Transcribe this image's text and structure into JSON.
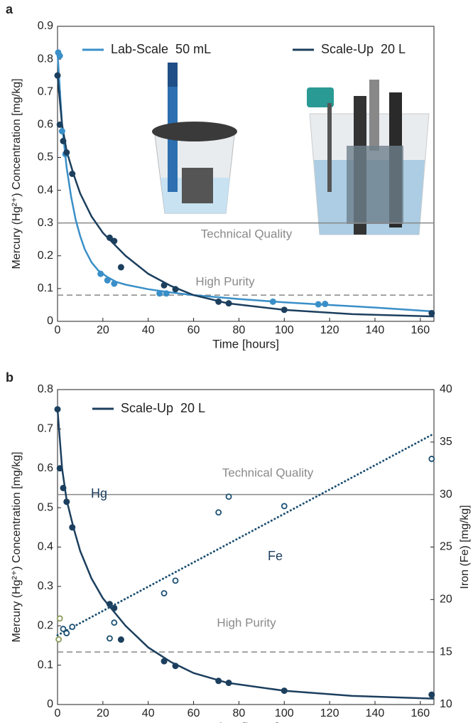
{
  "chart_data": [
    {
      "type": "scatter",
      "panel_label": "a",
      "xlabel": "Time [hours]",
      "ylabel": "Mercury (Hg²⁺) Concentration [mg/kg]",
      "xlim": [
        0,
        166
      ],
      "xticks": [
        0,
        20,
        40,
        60,
        80,
        100,
        120,
        140,
        160
      ],
      "ylim": [
        0,
        0.9
      ],
      "yticks": [
        0,
        0.1,
        0.2,
        0.3,
        0.4,
        0.5,
        0.6,
        0.7,
        0.8,
        0.9
      ],
      "ref_lines": [
        {
          "label": "Technical Quality",
          "value": 0.3,
          "style": "solid"
        },
        {
          "label": "High Purity",
          "value": 0.08,
          "style": "dashed"
        }
      ],
      "series": [
        {
          "name": "Lab-Scale  50 mL",
          "color": "#3a8fc8",
          "mode": "line",
          "x": [
            0,
            2,
            4,
            6,
            8,
            10,
            12,
            15,
            18,
            22,
            26,
            30,
            40,
            50,
            60,
            80,
            100,
            120,
            140,
            166
          ],
          "values": [
            0.82,
            0.6,
            0.47,
            0.38,
            0.31,
            0.26,
            0.22,
            0.18,
            0.155,
            0.135,
            0.12,
            0.112,
            0.098,
            0.088,
            0.08,
            0.068,
            0.058,
            0.05,
            0.042,
            0.03
          ]
        },
        {
          "name": "Scale-Up  20 L",
          "color": "#1c3f5e",
          "mode": "line",
          "x": [
            0,
            2,
            4,
            7,
            10,
            15,
            20,
            25,
            30,
            40,
            50,
            60,
            75,
            100,
            130,
            166
          ],
          "values": [
            0.75,
            0.6,
            0.52,
            0.45,
            0.39,
            0.32,
            0.27,
            0.235,
            0.2,
            0.145,
            0.108,
            0.08,
            0.055,
            0.035,
            0.022,
            0.015
          ]
        },
        {
          "color": "#3a8fc8",
          "mode": "dot",
          "x": [
            0.3,
            1,
            2,
            3.5,
            19,
            22,
            25,
            45,
            48,
            95,
            115,
            118
          ],
          "values": [
            0.82,
            0.81,
            0.58,
            0.51,
            0.145,
            0.125,
            0.115,
            0.085,
            0.085,
            0.06,
            0.052,
            0.053
          ]
        },
        {
          "color": "#1c3f5e",
          "mode": "dot",
          "x": [
            0,
            1,
            2.5,
            4,
            6.5,
            23,
            25,
            28,
            47,
            52,
            71,
            75.5,
            100,
            165
          ],
          "values": [
            0.75,
            0.6,
            0.55,
            0.515,
            0.45,
            0.255,
            0.245,
            0.165,
            0.11,
            0.098,
            0.06,
            0.055,
            0.035,
            0.025
          ]
        }
      ]
    },
    {
      "type": "scatter",
      "panel_label": "b",
      "xlabel": "Time [hours]",
      "ylabel": "Mercury (Hg²⁺) Concentration [mg/kg]",
      "y2label": "Iron (Fe) [mg/kg]",
      "xlim": [
        0,
        166
      ],
      "xticks": [
        0,
        20,
        40,
        60,
        80,
        100,
        120,
        140,
        160
      ],
      "ylim": [
        0,
        0.8
      ],
      "yticks": [
        0,
        0.1,
        0.2,
        0.3,
        0.4,
        0.5,
        0.6,
        0.7,
        0.8
      ],
      "y2lim": [
        10,
        40
      ],
      "y2ticks": [
        10,
        15,
        20,
        25,
        30,
        35,
        40
      ],
      "ref_lines": [
        {
          "label": "Technical Quality",
          "value": 30,
          "style": "solid",
          "axis": "y2"
        },
        {
          "label": "High Purity",
          "value": 15,
          "style": "dashed",
          "axis": "y2"
        }
      ],
      "annotations": [
        "Hg",
        "Fe"
      ],
      "series": [
        {
          "name": "Scale-Up  20 L",
          "color": "#1c3f5e",
          "mode": "line",
          "x": [
            0,
            2,
            4,
            7,
            10,
            15,
            20,
            25,
            30,
            40,
            50,
            60,
            75,
            100,
            130,
            166
          ],
          "values": [
            0.75,
            0.6,
            0.52,
            0.45,
            0.39,
            0.32,
            0.27,
            0.235,
            0.2,
            0.145,
            0.108,
            0.08,
            0.055,
            0.035,
            0.022,
            0.015
          ]
        },
        {
          "color": "#1c3f5e",
          "mode": "dot",
          "x": [
            0,
            1,
            2.5,
            4,
            6.5,
            23,
            25,
            28,
            47,
            52,
            71,
            75.5,
            100,
            165
          ],
          "values": [
            0.75,
            0.6,
            0.55,
            0.515,
            0.45,
            0.255,
            0.245,
            0.165,
            0.11,
            0.098,
            0.06,
            0.055,
            0.035,
            0.025
          ]
        },
        {
          "color": "#1c4f72",
          "mode": "dotted",
          "axis": "y2",
          "x": [
            0,
            166
          ],
          "values": [
            16.6,
            35.8
          ]
        },
        {
          "color": "#8a9a5b",
          "mode": "open",
          "axis": "y2",
          "x": [
            1,
            0.5
          ],
          "values": [
            18.2,
            16.2
          ]
        },
        {
          "color": "#1c4f72",
          "mode": "open",
          "axis": "y2",
          "x": [
            2.5,
            4,
            6.5,
            23,
            25,
            47,
            52,
            71,
            75.5,
            100,
            165
          ],
          "values": [
            17.2,
            16.8,
            17.4,
            16.3,
            17.8,
            20.6,
            21.8,
            28.3,
            29.8,
            28.9,
            33.4
          ]
        }
      ]
    }
  ]
}
